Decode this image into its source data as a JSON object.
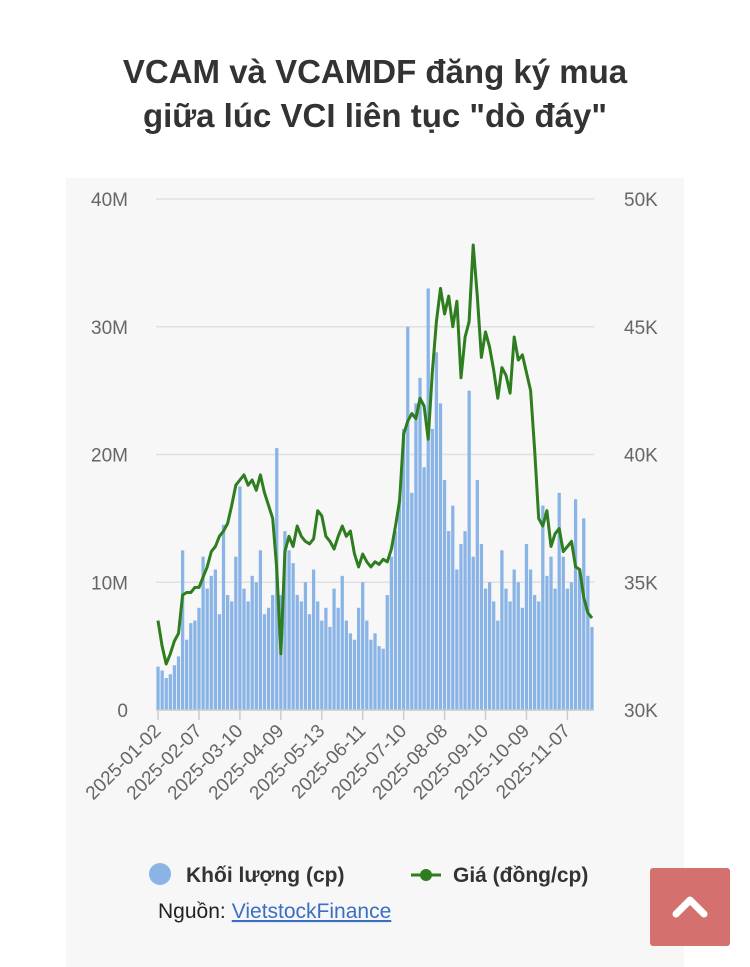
{
  "chart_data": {
    "type": "bar-line",
    "title": "VCAM và VCAMDF đăng ký mua giữa lúc VCI liên tục \"dò đáy\"",
    "source_label": "Nguồn:",
    "source_link": "VietstockFinance",
    "categories": [
      "2025-01-02",
      null,
      null,
      null,
      null,
      null,
      null,
      null,
      null,
      null,
      "2025-02-07",
      null,
      null,
      null,
      null,
      null,
      null,
      null,
      null,
      null,
      "2025-03-10",
      null,
      null,
      null,
      null,
      null,
      null,
      null,
      null,
      null,
      "2025-04-09",
      null,
      null,
      null,
      null,
      null,
      null,
      null,
      null,
      null,
      "2025-05-13",
      null,
      null,
      null,
      null,
      null,
      null,
      null,
      null,
      null,
      "2025-06-11",
      null,
      null,
      null,
      null,
      null,
      null,
      null,
      null,
      null,
      "2025-07-10",
      null,
      null,
      null,
      null,
      null,
      null,
      null,
      null,
      null,
      "2025-08-08",
      null,
      null,
      null,
      null,
      null,
      null,
      null,
      null,
      null,
      "2025-09-10",
      null,
      null,
      null,
      null,
      null,
      null,
      null,
      null,
      null,
      "2025-10-09",
      null,
      null,
      null,
      null,
      null,
      null,
      null,
      null,
      null,
      "2025-11-07",
      null,
      null,
      null,
      null,
      null,
      null
    ],
    "series": [
      {
        "name": "Khối lượng (cp)",
        "color": "#8ab4e6",
        "kind": "bar",
        "values": [
          3400000,
          3100000,
          2500000,
          2800000,
          3500000,
          4200000,
          12500000,
          5500000,
          6800000,
          7000000,
          8000000,
          12000000,
          9500000,
          10500000,
          11000000,
          7500000,
          14500000,
          9000000,
          8500000,
          12000000,
          17500000,
          9500000,
          8500000,
          10500000,
          10000000,
          12500000,
          7500000,
          8000000,
          9000000,
          20500000,
          9000000,
          14000000,
          12500000,
          11500000,
          9000000,
          8500000,
          10000000,
          7500000,
          11000000,
          8500000,
          7000000,
          8000000,
          6500000,
          9500000,
          8000000,
          10500000,
          7000000,
          6000000,
          5500000,
          8000000,
          10000000,
          7000000,
          5500000,
          6000000,
          5000000,
          4800000,
          9000000,
          12000000,
          14000000,
          16500000,
          22000000,
          30000000,
          17000000,
          24000000,
          26000000,
          19000000,
          33000000,
          22000000,
          28000000,
          24000000,
          18000000,
          14000000,
          16000000,
          11000000,
          13000000,
          14000000,
          25000000,
          12000000,
          18000000,
          13000000,
          9500000,
          10000000,
          8500000,
          7000000,
          12500000,
          9500000,
          8500000,
          11000000,
          10000000,
          8000000,
          13000000,
          11000000,
          9000000,
          8500000,
          16000000,
          10500000,
          12000000,
          9500000,
          17000000,
          12000000,
          9500000,
          10000000,
          16500000,
          11000000,
          15000000,
          10500000,
          6500000
        ]
      },
      {
        "name": "Giá (đồng/cp)",
        "color": "#2e7d1f",
        "kind": "line",
        "axis": "y2",
        "values": [
          33500,
          32500,
          31800,
          32200,
          32700,
          33000,
          34500,
          34600,
          34600,
          34800,
          34800,
          35200,
          35600,
          36200,
          36400,
          36800,
          37000,
          37300,
          38000,
          38800,
          39000,
          39200,
          38800,
          39000,
          38600,
          39200,
          38500,
          38000,
          37500,
          35500,
          32200,
          36200,
          36800,
          36400,
          37200,
          36800,
          36600,
          36500,
          36700,
          37800,
          37600,
          36800,
          36600,
          36300,
          36800,
          37200,
          36800,
          37000,
          36100,
          35600,
          36100,
          35800,
          35600,
          35800,
          35700,
          35900,
          35800,
          36300,
          37200,
          38200,
          40800,
          41300,
          41600,
          41400,
          42200,
          41900,
          40600,
          43200,
          45200,
          46500,
          45500,
          46200,
          45000,
          46000,
          43000,
          44600,
          45200,
          48200,
          46200,
          43800,
          44800,
          44200,
          43300,
          42200,
          43400,
          43100,
          42400,
          44600,
          43700,
          43900,
          43200,
          42500,
          40200,
          37500,
          37200,
          37800,
          36400,
          36900,
          37100,
          36200,
          36400,
          36600,
          35600,
          35500,
          34400,
          33800,
          33600
        ]
      }
    ],
    "ylim": [
      0,
      40000000
    ],
    "yticks": [
      0,
      {
        "value": 10000000,
        "label": "10M"
      },
      {
        "value": 20000000,
        "label": "20M"
      },
      {
        "value": 30000000,
        "label": "30M"
      },
      {
        "value": 40000000,
        "label": "40M"
      }
    ],
    "y2lim": [
      30000,
      50000
    ],
    "y2ticks": [
      {
        "value": 30000,
        "label": "30K"
      },
      {
        "value": 35000,
        "label": "35K"
      },
      {
        "value": 40000,
        "label": "40K"
      },
      {
        "value": 45000,
        "label": "45K"
      },
      {
        "value": 50000,
        "label": "50K"
      }
    ],
    "grid": true
  }
}
